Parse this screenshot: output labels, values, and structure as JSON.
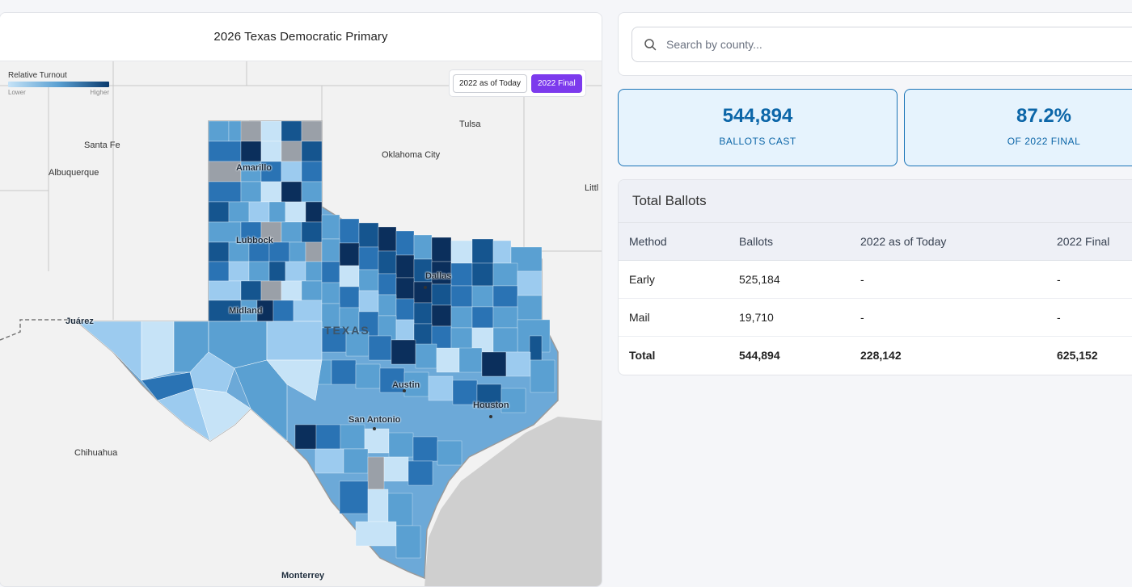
{
  "map": {
    "title": "2026 Texas Democratic Primary",
    "legend": {
      "title": "Relative Turnout",
      "low": "Lower",
      "high": "Higher"
    },
    "toggles": [
      {
        "label": "2022 as of Today",
        "active": false
      },
      {
        "label": "2022 Final",
        "active": true
      }
    ],
    "labels": {
      "santa_fe": "Santa Fe",
      "albuquerque": "Albuquerque",
      "amarillo": "Amarillo",
      "tulsa": "Tulsa",
      "oklahoma_city": "Oklahoma City",
      "little_rock": "Littl",
      "lubbock": "Lubbock",
      "dallas": "Dallas",
      "midland": "Midland",
      "juarez": "Juárez",
      "texas": "TEXAS",
      "austin": "Austin",
      "houston": "Houston",
      "san_antonio": "San Antonio",
      "chihuahua": "Chihuahua",
      "monterrey": "Monterrey"
    },
    "colors": {
      "lightest": "#c6e3f7",
      "light": "#9ccbef",
      "mid": "#5aa0d2",
      "dark": "#2a73b4",
      "darker": "#15558f",
      "darkest": "#0b2f5c",
      "no_data": "#9aa0a8",
      "gulf": "#cfcfcf"
    }
  },
  "search": {
    "placeholder": "Search by county..."
  },
  "stats": [
    {
      "value": "544,894",
      "label": "BALLOTS CAST"
    },
    {
      "value": "87.2%",
      "label": "OF 2022 FINAL"
    }
  ],
  "table": {
    "title": "Total Ballots",
    "headers": [
      "Method",
      "Ballots",
      "2022 as of Today",
      "2022 Final"
    ],
    "rows": [
      [
        "Early",
        "525,184",
        "-",
        "-"
      ],
      [
        "Mail",
        "19,710",
        "-",
        "-"
      ],
      [
        "Total",
        "544,894",
        "228,142",
        "625,152"
      ]
    ]
  },
  "accent_color": "#7c3aed",
  "stat_color": "#0c66a8"
}
